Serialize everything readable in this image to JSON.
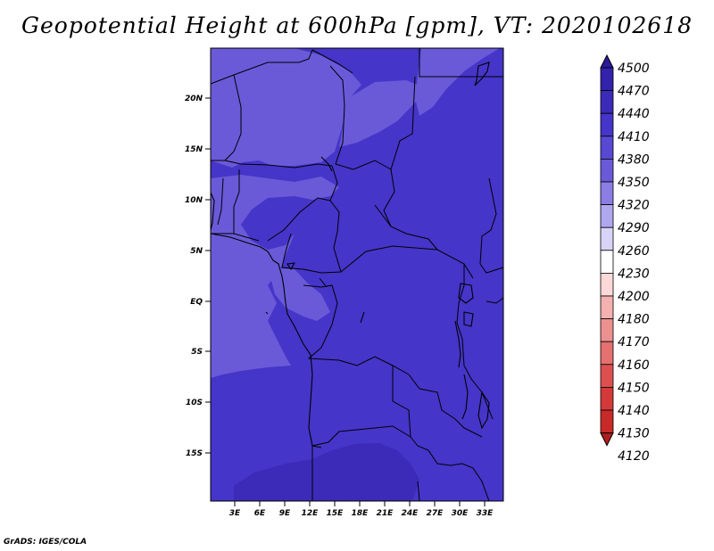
{
  "title": "Geopotential Height at 600hPa [gpm], VT: 2020102618",
  "footer": "GrADS: IGES/COLA",
  "map": {
    "lat_labels": [
      "20N",
      "15N",
      "10N",
      "5N",
      "EQ",
      "5S",
      "10S",
      "15S"
    ],
    "lon_labels": [
      "3E",
      "6E",
      "9E",
      "12E",
      "15E",
      "18E",
      "21E",
      "24E",
      "27E",
      "30E",
      "33E"
    ],
    "colors": {
      "base": "#4535c8",
      "light": "#6a5ad8",
      "dark": "#3c2bb8",
      "boundary": "#000000"
    }
  },
  "colorbar": {
    "levels": [
      "4500",
      "4470",
      "4440",
      "4410",
      "4380",
      "4350",
      "4320",
      "4290",
      "4260",
      "4230",
      "4200",
      "4180",
      "4170",
      "4160",
      "4150",
      "4140",
      "4130",
      "4120"
    ],
    "colors": [
      "#2a1a9a",
      "#3322aa",
      "#3c2bb8",
      "#4535c8",
      "#5848d2",
      "#6a5ad8",
      "#8b7de2",
      "#b0a8ee",
      "#d8d4f8",
      "#ffffff",
      "#fcd8d8",
      "#f5b0b0",
      "#ec9090",
      "#e47070",
      "#dd5050",
      "#d43a3a",
      "#c82a2a",
      "#b01e1e"
    ]
  }
}
